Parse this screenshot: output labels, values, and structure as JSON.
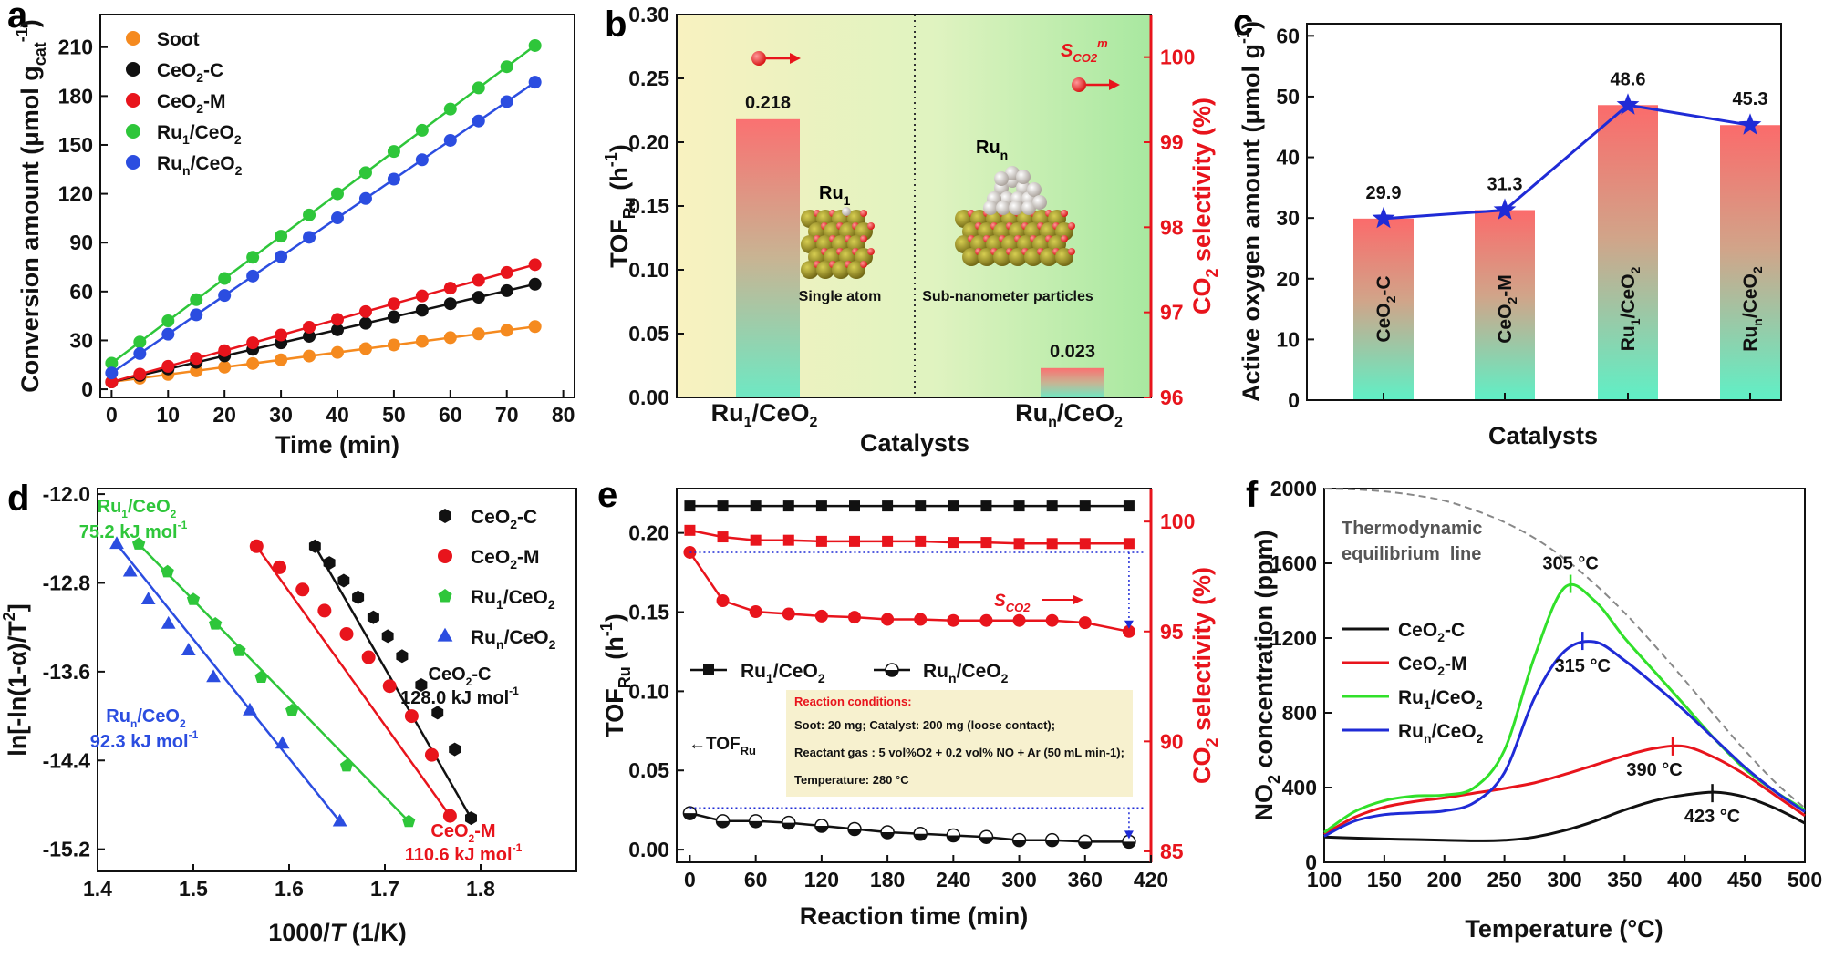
{
  "figure": {
    "panel_letters": [
      "a",
      "b",
      "c",
      "d",
      "e",
      "f"
    ]
  },
  "chart_data": [
    {
      "panel": "a",
      "type": "scatter",
      "xlabel": "Time (min)",
      "ylabel": "Conversion amount (μmol g",
      "ylabel_sub": "cat",
      "ylabel_sup": "-1",
      "ylabel_end": ")",
      "xlim": [
        -2,
        82
      ],
      "ylim": [
        -5,
        230
      ],
      "xticks": [
        0,
        10,
        20,
        30,
        40,
        50,
        60,
        70,
        80
      ],
      "yticks": [
        0,
        30,
        60,
        90,
        120,
        150,
        180,
        210
      ],
      "series": [
        {
          "name": "Soot",
          "name_main": "Soot",
          "name_sub": "",
          "name_end": "",
          "color": "#f58a1f",
          "marker": "circle",
          "slope": 0.453,
          "intercept": 4.5,
          "x": [
            0,
            5,
            10,
            15,
            20,
            25,
            30,
            35,
            40,
            45,
            50,
            55,
            60,
            65,
            70,
            75
          ],
          "y": [
            4.5,
            6.8,
            9.1,
            11.3,
            13.6,
            15.8,
            18.1,
            20.4,
            22.6,
            24.9,
            27.2,
            29.4,
            31.7,
            34.0,
            36.2,
            38.5
          ]
        },
        {
          "name": "CeO2-C",
          "name_main": "CeO",
          "name_sub": "2",
          "name_end": "-C",
          "color": "#111111",
          "marker": "circle",
          "slope": 0.8,
          "intercept": 4.5,
          "x": [
            0,
            5,
            10,
            15,
            20,
            25,
            30,
            35,
            40,
            45,
            50,
            55,
            60,
            65,
            70,
            75
          ],
          "y": [
            4.5,
            8.5,
            12.5,
            16.5,
            20.5,
            24.5,
            28.5,
            32.5,
            36.5,
            40.5,
            44.5,
            48.5,
            52.5,
            56.5,
            60.5,
            64.5
          ]
        },
        {
          "name": "CeO2-M",
          "name_main": "CeO",
          "name_sub": "2",
          "name_end": "-M",
          "color": "#e8141c",
          "marker": "circle",
          "slope": 0.96,
          "intercept": 4.5,
          "x": [
            0,
            5,
            10,
            15,
            20,
            25,
            30,
            35,
            40,
            45,
            50,
            55,
            60,
            65,
            70,
            75
          ],
          "y": [
            4.5,
            9.3,
            14.1,
            18.9,
            23.7,
            28.5,
            33.3,
            38.1,
            42.9,
            47.7,
            52.5,
            57.3,
            62.1,
            66.9,
            71.7,
            76.5
          ]
        },
        {
          "name": "Ru1/CeO2",
          "name_main": "Ru",
          "name_sub": "1",
          "name_end": "/CeO",
          "name_sub2": "2",
          "color": "#2ec63a",
          "marker": "circle",
          "slope": 2.6,
          "intercept": 16,
          "x": [
            0,
            5,
            10,
            15,
            20,
            25,
            30,
            35,
            40,
            45,
            50,
            55,
            60,
            65,
            70,
            75
          ],
          "y": [
            16,
            29,
            42,
            55,
            68,
            81,
            94,
            107,
            120,
            133,
            146,
            159,
            172,
            185,
            198,
            211
          ]
        },
        {
          "name": "Run/CeO2",
          "name_main": "Ru",
          "name_sub": "n",
          "name_end": "/CeO",
          "name_sub2": "2",
          "color": "#2b4de0",
          "marker": "circle",
          "slope": 2.38,
          "intercept": 10,
          "x": [
            0,
            5,
            10,
            15,
            20,
            25,
            30,
            35,
            40,
            45,
            50,
            55,
            60,
            65,
            70,
            75
          ],
          "y": [
            10,
            21.9,
            33.8,
            45.7,
            57.6,
            69.5,
            81.4,
            93.3,
            105.2,
            117.1,
            129,
            140.9,
            152.8,
            164.7,
            176.6,
            188.5
          ]
        }
      ]
    },
    {
      "panel": "b",
      "type": "bar",
      "categories": [
        {
          "main": "Ru",
          "sub": "1",
          "end": "/CeO",
          "sub2": "2"
        },
        {
          "main": "Ru",
          "sub": "n",
          "end": "/CeO",
          "sub2": "2"
        }
      ],
      "values": [
        0.218,
        0.023
      ],
      "value_labels": [
        "0.218",
        "0.023"
      ],
      "xlabel": "Catalysts",
      "ylabel_left": "TOF",
      "ylabel_left_sub": "Ru",
      "ylabel_left_end": " (h",
      "ylabel_left_sup": "-1",
      "ylabel_left_close": ")",
      "ylabel_right": "CO",
      "ylabel_right_sub": "2",
      "ylabel_right_end": " selectivity (%)",
      "ylim_left": [
        0,
        0.3
      ],
      "yticks_left": [
        "0.00",
        "0.05",
        "0.10",
        "0.15",
        "0.20",
        "0.25",
        "0.30"
      ],
      "ylim_right": [
        96,
        100.5
      ],
      "yticks_right": [
        96,
        97,
        98,
        99,
        100
      ],
      "selectivity": [
        99.9,
        99.5
      ],
      "legend_s": "S",
      "legend_s_sub": "CO2",
      "legend_s_sup": "m",
      "insets": [
        {
          "title": "Ru",
          "title_sub": "1",
          "caption": "Single atom"
        },
        {
          "title": "Ru",
          "title_sub": "n",
          "caption": "Sub-nanometer particles"
        }
      ]
    },
    {
      "panel": "c",
      "type": "bar",
      "categories": [
        {
          "main": "CeO",
          "sub": "2",
          "end": "-C"
        },
        {
          "main": "CeO",
          "sub": "2",
          "end": "-M"
        },
        {
          "main": "Ru",
          "sub": "1",
          "end": "/CeO",
          "sub2": "2"
        },
        {
          "main": "Ru",
          "sub": "n",
          "end": "/CeO",
          "sub2": "2"
        }
      ],
      "values": [
        29.9,
        31.3,
        48.6,
        45.3
      ],
      "value_labels": [
        "29.9",
        "31.3",
        "48.6",
        "45.3"
      ],
      "xlabel": "Catalysts",
      "ylabel": "Active oxygen amount (μmol g",
      "ylabel_sup": "-1",
      "ylabel_end": ")",
      "ylim": [
        0,
        62
      ],
      "yticks": [
        0,
        10,
        20,
        30,
        40,
        50,
        60
      ]
    },
    {
      "panel": "d",
      "type": "scatter",
      "xlabel_main": "1000/",
      "xlabel_it": "T",
      "xlabel_end": " (1/K)",
      "ylabel": "ln[-ln(1-α)/T",
      "ylabel_sup": "2",
      "ylabel_end": "]",
      "xlim": [
        1.4,
        1.9
      ],
      "ylim": [
        -15.4,
        -11.95
      ],
      "xticks": [
        "1.4",
        "1.5",
        "1.6",
        "1.7",
        "1.8"
      ],
      "yticks": [
        "-12.0",
        "-12.8",
        "-13.6",
        "-14.4",
        "-15.2"
      ],
      "series": [
        {
          "name": "CeO2-C",
          "name_main": "CeO",
          "name_sub": "2",
          "name_end": "-C",
          "color": "#111111",
          "marker": "hexagon",
          "x": [
            1.627,
            1.642,
            1.657,
            1.672,
            1.688,
            1.703,
            1.718,
            1.738,
            1.755,
            1.773,
            1.79
          ],
          "y": [
            -12.47,
            -12.62,
            -12.78,
            -12.93,
            -13.11,
            -13.28,
            -13.46,
            -13.72,
            -13.97,
            -14.3,
            -14.92
          ],
          "label1": "CeO2-C",
          "label1_main": "CeO",
          "label1_sub": "2",
          "label1_end": "-C",
          "label2": "128.0 kJ mol-1",
          "label2_main": "128.0 kJ mol",
          "label2_sup": "-1"
        },
        {
          "name": "CeO2-M",
          "name_main": "CeO",
          "name_sub": "2",
          "name_end": "-M",
          "color": "#e8141c",
          "marker": "circle",
          "x": [
            1.566,
            1.59,
            1.614,
            1.637,
            1.66,
            1.683,
            1.705,
            1.728,
            1.749,
            1.768
          ],
          "y": [
            -12.47,
            -12.66,
            -12.86,
            -13.05,
            -13.26,
            -13.47,
            -13.73,
            -14.0,
            -14.35,
            -14.9
          ],
          "label1": "CeO2-M",
          "label1_main": "CeO",
          "label1_sub": "2",
          "label1_end": "-M",
          "label2": "110.6 kJ mol-1",
          "label2_main": "110.6 kJ mol",
          "label2_sup": "-1"
        },
        {
          "name": "Ru1/CeO2",
          "name_main": "Ru",
          "name_sub": "1",
          "name_end": "/CeO",
          "name_sub2": "2",
          "color": "#2ec63a",
          "marker": "pentagon",
          "x": [
            1.443,
            1.473,
            1.5,
            1.523,
            1.548,
            1.571,
            1.603,
            1.66,
            1.725
          ],
          "y": [
            -12.45,
            -12.7,
            -12.95,
            -13.17,
            -13.41,
            -13.65,
            -13.95,
            -14.45,
            -14.95
          ],
          "label1": "Ru1/CeO2",
          "label1_main": "Ru",
          "label1_sub": "1",
          "label1_end": "/CeO",
          "label1_sub2": "2",
          "label2": "75.2 kJ mol-1",
          "label2_main": "75.2 kJ mol",
          "label2_sup": "-1"
        },
        {
          "name": "Run/CeO2",
          "name_main": "Ru",
          "name_sub": "n",
          "name_end": "/CeO",
          "name_sub2": "2",
          "color": "#2b4de0",
          "marker": "triangle",
          "x": [
            1.42,
            1.434,
            1.453,
            1.474,
            1.495,
            1.521,
            1.559,
            1.593,
            1.653
          ],
          "y": [
            -12.45,
            -12.7,
            -12.95,
            -13.17,
            -13.41,
            -13.65,
            -13.95,
            -14.25,
            -14.95
          ],
          "label1": "Run/CeO2",
          "label1_main": "Ru",
          "label1_sub": "n",
          "label1_end": "/CeO",
          "label1_sub2": "2",
          "label2": "92.3 kJ mol-1",
          "label2_main": "92.3 kJ mol",
          "label2_sup": "-1"
        }
      ]
    },
    {
      "panel": "e",
      "type": "line",
      "xlabel": "Reaction time (min)",
      "ylabel_left": "TOF",
      "ylabel_left_sub": "Ru",
      "ylabel_left_end": " (h",
      "ylabel_left_sup": "-1",
      "ylabel_left_close": ")",
      "ylabel_right": "CO",
      "ylabel_right_sub": "2",
      "ylabel_right_end": " selectivity (%)",
      "xlim": [
        -12,
        420
      ],
      "ylim_left": [
        -0.008,
        0.228
      ],
      "ylim_right": [
        84.5,
        101.5
      ],
      "xticks": [
        0,
        60,
        120,
        180,
        240,
        300,
        360,
        420
      ],
      "yticks_left": [
        "0.00",
        "0.05",
        "0.10",
        "0.15",
        "0.20"
      ],
      "yticks_right": [
        85,
        90,
        95,
        100
      ],
      "x": [
        0,
        30,
        60,
        90,
        120,
        150,
        180,
        210,
        240,
        270,
        300,
        330,
        360,
        400
      ],
      "series": [
        {
          "name": "Ru1/CeO2 TOF",
          "axis": "left",
          "color": "#111111",
          "marker": "square",
          "fill": "#111111",
          "values": [
            0.217,
            0.217,
            0.217,
            0.217,
            0.217,
            0.217,
            0.217,
            0.217,
            0.217,
            0.217,
            0.217,
            0.217,
            0.217,
            0.217
          ]
        },
        {
          "name": "Run/CeO2 TOF",
          "axis": "left",
          "color": "#111111",
          "marker": "circle-half",
          "fill": "#111111",
          "values": [
            0.023,
            0.018,
            0.018,
            0.017,
            0.015,
            0.013,
            0.011,
            0.01,
            0.009,
            0.008,
            0.006,
            0.006,
            0.005,
            0.005
          ]
        },
        {
          "name": "Ru1/CeO2 selectivity",
          "axis": "right",
          "color": "#e8141c",
          "marker": "square",
          "fill": "#e8141c",
          "values": [
            99.6,
            99.3,
            99.15,
            99.15,
            99.1,
            99.1,
            99.1,
            99.1,
            99.05,
            99.05,
            99.0,
            99.0,
            99.0,
            99.0
          ]
        },
        {
          "name": "Run/CeO2 selectivity",
          "axis": "right",
          "color": "#e8141c",
          "marker": "circle",
          "fill": "#e8141c",
          "values": [
            98.6,
            96.4,
            95.9,
            95.8,
            95.7,
            95.65,
            95.55,
            95.55,
            95.5,
            95.5,
            95.5,
            95.5,
            95.4,
            95.0
          ]
        }
      ],
      "legend": [
        {
          "main": "Ru",
          "sub": "1",
          "end": "/CeO",
          "sub2": "2"
        },
        {
          "main": "Ru",
          "sub": "n",
          "end": "/CeO",
          "sub2": "2"
        }
      ],
      "annot_tof": "←TOF",
      "annot_tof_sub": "Ru",
      "annot_s": "S",
      "annot_s_sub": "CO2",
      "conditions_title": "Reaction conditions:",
      "conditions": [
        "Soot: 20 mg; Catalyst: 200 mg (loose contact);",
        "Reactant gas : 5 vol%O2 + 0.2 vol% NO + Ar (50 mL min-1);",
        "Temperature: 280 °C"
      ]
    },
    {
      "panel": "f",
      "type": "line",
      "xlabel": "Temperature (°C)",
      "ylabel": "NO",
      "ylabel_sub": "2",
      "ylabel_end": " concentration (ppm)",
      "xlim": [
        100,
        500
      ],
      "ylim": [
        0,
        2000
      ],
      "xticks": [
        100,
        150,
        200,
        250,
        300,
        350,
        400,
        450,
        500
      ],
      "yticks": [
        0,
        400,
        800,
        1200,
        1600,
        2000
      ],
      "x": [
        100,
        125,
        150,
        175,
        200,
        225,
        250,
        275,
        300,
        325,
        350,
        375,
        400,
        425,
        450,
        475,
        500
      ],
      "equilibrium": {
        "label1": "Thermodynamic",
        "label2": "equilibrium  line",
        "color": "#888888",
        "values": [
          2000,
          1995,
          1985,
          1965,
          1935,
          1885,
          1820,
          1735,
          1625,
          1490,
          1335,
          1160,
          975,
          785,
          600,
          430,
          290
        ]
      },
      "series": [
        {
          "name": "CeO2-C",
          "name_main": "CeO",
          "name_sub": "2",
          "name_end": "-C",
          "color": "#111111",
          "values": [
            135,
            130,
            125,
            122,
            118,
            115,
            118,
            135,
            170,
            220,
            280,
            330,
            360,
            375,
            350,
            290,
            210
          ],
          "peak_label": "423 °C",
          "peak_x": 423
        },
        {
          "name": "CeO2-M",
          "name_main": "CeO",
          "name_sub": "2",
          "name_end": "-M",
          "color": "#e8141c",
          "values": [
            150,
            240,
            295,
            325,
            345,
            370,
            395,
            425,
            470,
            520,
            570,
            610,
            620,
            560,
            470,
            360,
            250
          ],
          "peak_label": "390 °C",
          "peak_x": 390
        },
        {
          "name": "Ru1/CeO2",
          "name_main": "Ru",
          "name_sub": "1",
          "name_end": "/CeO",
          "name_sub2": "2",
          "color": "#31e02a",
          "values": [
            160,
            270,
            330,
            355,
            360,
            400,
            600,
            1100,
            1470,
            1400,
            1200,
            1020,
            840,
            660,
            500,
            380,
            280
          ],
          "peak_label": "305 °C",
          "peak_x": 305
        },
        {
          "name": "Run/CeO2",
          "name_main": "Ru",
          "name_sub": "n",
          "name_end": "/CeO",
          "name_sub2": "2",
          "color": "#1f2bd6",
          "values": [
            140,
            220,
            255,
            265,
            275,
            320,
            480,
            880,
            1130,
            1180,
            1080,
            950,
            810,
            660,
            510,
            380,
            270
          ],
          "peak_label": "315 °C",
          "peak_x": 315
        }
      ]
    }
  ]
}
